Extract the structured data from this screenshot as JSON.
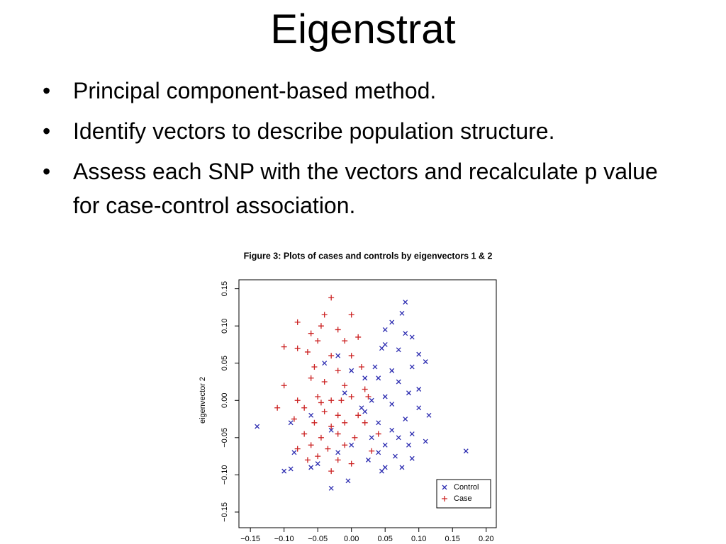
{
  "slide": {
    "title": "Eigenstrat",
    "bullets": [
      "Principal component-based method.",
      "Identify vectors to describe population structure.",
      "Assess each SNP with the vectors and recalculate p value for case-control association."
    ]
  },
  "chart_data": {
    "type": "scatter",
    "title": "Figure 3: Plots of cases and controls by eigenvectors 1 & 2",
    "y_label": "eigenvector 2",
    "xlim": [
      -0.167,
      0.215
    ],
    "ylim": [
      -0.171,
      0.162
    ],
    "xticks": [
      {
        "value": -0.15,
        "label": "−0.15"
      },
      {
        "value": -0.1,
        "label": "−0.10"
      },
      {
        "value": -0.05,
        "label": "−0.05"
      },
      {
        "value": 0,
        "label": "0.00"
      },
      {
        "value": 0.05,
        "label": "0.05"
      },
      {
        "value": 0.1,
        "label": "0.10"
      },
      {
        "value": 0.15,
        "label": "0.15"
      },
      {
        "value": 0.2,
        "label": "0.20"
      }
    ],
    "yticks": [
      {
        "value": -0.15,
        "label": "−0.15"
      },
      {
        "value": -0.1,
        "label": "−0.10"
      },
      {
        "value": -0.05,
        "label": "−0.05"
      },
      {
        "value": 0,
        "label": "0.00"
      },
      {
        "value": 0.05,
        "label": "0.05"
      },
      {
        "value": 0.1,
        "label": "0.10"
      },
      {
        "value": 0.15,
        "label": "0.15"
      }
    ],
    "legend": "bottom-right",
    "series": [
      {
        "name": "Control",
        "color": "#2b2bb0",
        "marker": "x",
        "x": [
          -0.14,
          0.17,
          0.08,
          0.075,
          0.06,
          0.05,
          0.08,
          0.09,
          0.05,
          0.07,
          0.1,
          0.11,
          0.09,
          0.06,
          0.04,
          0.07,
          0.1,
          0.085,
          0.05,
          0.03,
          0.06,
          0.1,
          0.115,
          0.08,
          0.04,
          0.06,
          0.02,
          0.09,
          0.07,
          0.05,
          0.11,
          0.085,
          0.04,
          0.065,
          0.09,
          0.05,
          0.045,
          0.025,
          -0.1,
          -0.09,
          -0.06,
          -0.05,
          -0.03,
          -0.005,
          -0.085,
          -0.09,
          -0.06,
          -0.04,
          -0.02,
          0.0,
          0.02,
          -0.01,
          0.015,
          -0.03,
          0.0,
          -0.02,
          0.03,
          0.035,
          0.045,
          0.075
        ],
        "values": [
          -0.035,
          -0.068,
          0.132,
          0.117,
          0.105,
          0.095,
          0.09,
          0.085,
          0.075,
          0.068,
          0.062,
          0.052,
          0.045,
          0.04,
          0.03,
          0.025,
          0.015,
          0.01,
          0.005,
          0.0,
          -0.005,
          -0.01,
          -0.02,
          -0.025,
          -0.03,
          -0.04,
          -0.015,
          -0.045,
          -0.05,
          -0.06,
          -0.055,
          -0.06,
          -0.07,
          -0.075,
          -0.078,
          -0.09,
          -0.095,
          -0.08,
          -0.095,
          -0.092,
          -0.09,
          -0.085,
          -0.118,
          -0.108,
          -0.07,
          -0.03,
          -0.02,
          0.05,
          0.06,
          0.04,
          0.03,
          0.01,
          -0.01,
          -0.04,
          -0.06,
          -0.07,
          -0.05,
          0.045,
          0.07,
          -0.09
        ]
      },
      {
        "name": "Case",
        "color": "#cc2222",
        "marker": "+",
        "x": [
          -0.03,
          -0.04,
          0.0,
          -0.08,
          -0.045,
          -0.02,
          -0.06,
          -0.1,
          -0.08,
          -0.05,
          -0.01,
          0.01,
          -0.065,
          -0.03,
          0.0,
          -0.055,
          -0.02,
          0.015,
          -0.06,
          -0.04,
          -0.01,
          0.02,
          -0.1,
          -0.08,
          -0.05,
          -0.03,
          0.0,
          -0.11,
          -0.07,
          -0.04,
          -0.02,
          0.01,
          -0.085,
          -0.055,
          -0.03,
          -0.01,
          0.02,
          -0.07,
          -0.045,
          -0.02,
          0.005,
          -0.06,
          -0.035,
          -0.01,
          0.04,
          -0.08,
          -0.05,
          -0.02,
          0.03,
          -0.03,
          0.0,
          -0.065,
          -0.045,
          -0.015,
          0.025
        ],
        "values": [
          0.138,
          0.115,
          0.115,
          0.105,
          0.1,
          0.095,
          0.09,
          0.072,
          0.07,
          0.08,
          0.08,
          0.085,
          0.065,
          0.06,
          0.06,
          0.045,
          0.04,
          0.045,
          0.03,
          0.025,
          0.02,
          0.015,
          0.02,
          0.0,
          0.005,
          0.0,
          0.005,
          -0.01,
          -0.01,
          -0.015,
          -0.02,
          -0.02,
          -0.025,
          -0.03,
          -0.035,
          -0.03,
          -0.03,
          -0.045,
          -0.05,
          -0.045,
          -0.05,
          -0.06,
          -0.065,
          -0.06,
          -0.045,
          -0.065,
          -0.075,
          -0.08,
          -0.068,
          -0.095,
          -0.085,
          -0.08,
          -0.003,
          0.0,
          0.005
        ]
      }
    ]
  }
}
